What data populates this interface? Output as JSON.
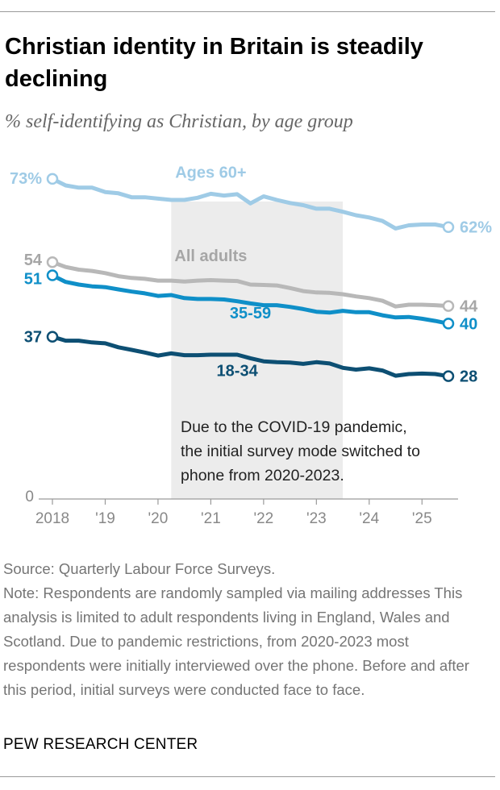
{
  "title": "Christian identity in Britain is steadily declining",
  "subtitle": "% self-identifying as Christian, by age group",
  "chart_data": {
    "type": "line",
    "x_ticks": [
      "2018",
      "'19",
      "'20",
      "'21",
      "'22",
      "'23",
      "'24",
      "'25"
    ],
    "y_zero_label": "0",
    "ylim": [
      0,
      100
    ],
    "x_range": [
      2018.0,
      2025.5
    ],
    "shaded_period": [
      2020.25,
      2023.5
    ],
    "annotation": "Due to the COVID-19 pandemic, the initial survey mode switched to phone from 2020-2023.",
    "series": [
      {
        "name": "Ages 60+",
        "color": "#9fcbe6",
        "start_label": "73%",
        "end_label": "62%",
        "x": [
          2018.0,
          2018.25,
          2018.5,
          2018.75,
          2019.0,
          2019.25,
          2019.5,
          2019.75,
          2020.0,
          2020.25,
          2020.5,
          2020.75,
          2021.0,
          2021.25,
          2021.5,
          2021.75,
          2022.0,
          2022.25,
          2022.5,
          2022.75,
          2023.0,
          2023.25,
          2023.5,
          2023.75,
          2024.0,
          2024.25,
          2024.5,
          2024.75,
          2025.0,
          2025.25,
          2025.5
        ],
        "values": [
          73,
          71.5,
          71,
          71,
          70,
          69.7,
          68.8,
          68.8,
          68.5,
          68.2,
          68.2,
          68.7,
          69.6,
          69.2,
          69.5,
          67.4,
          69,
          68.2,
          67.5,
          67,
          66.2,
          66.2,
          65.5,
          64.7,
          64.2,
          63.4,
          61.7,
          62.4,
          62.6,
          62.6,
          62
        ]
      },
      {
        "name": "All adults",
        "color": "#b8b8b8",
        "start_label": "54",
        "end_label": "44",
        "x": [
          2018.0,
          2018.25,
          2018.5,
          2018.75,
          2019.0,
          2019.25,
          2019.5,
          2019.75,
          2020.0,
          2020.25,
          2020.5,
          2020.75,
          2021.0,
          2021.25,
          2021.5,
          2021.75,
          2022.0,
          2022.25,
          2022.5,
          2022.75,
          2023.0,
          2023.25,
          2023.5,
          2023.75,
          2024.0,
          2024.25,
          2024.5,
          2024.75,
          2025.0,
          2025.25,
          2025.5
        ],
        "values": [
          54,
          52.9,
          52.3,
          52,
          51.5,
          50.8,
          50.4,
          50.2,
          49.8,
          49.8,
          49.6,
          49.8,
          49.9,
          49.8,
          49.7,
          48.9,
          48.8,
          48.7,
          48.1,
          47.4,
          47.1,
          47,
          46.7,
          46.2,
          45.8,
          45.2,
          43.9,
          44.3,
          44.3,
          44.2,
          44
        ]
      },
      {
        "name": "35-59",
        "color": "#0f8fc8",
        "start_label": "51",
        "end_label": "40",
        "x": [
          2018.0,
          2018.25,
          2018.5,
          2018.75,
          2019.0,
          2019.25,
          2019.5,
          2019.75,
          2020.0,
          2020.25,
          2020.5,
          2020.75,
          2021.0,
          2021.25,
          2021.5,
          2021.75,
          2022.0,
          2022.25,
          2022.5,
          2022.75,
          2023.0,
          2023.25,
          2023.5,
          2023.75,
          2024.0,
          2024.25,
          2024.5,
          2024.75,
          2025.0,
          2025.25,
          2025.5
        ],
        "values": [
          51,
          49.5,
          48.9,
          48.5,
          48.3,
          47.8,
          47.3,
          46.9,
          46.3,
          46.5,
          45.8,
          45.6,
          45.6,
          45.5,
          45.1,
          44.6,
          44.2,
          44.2,
          43.8,
          43.3,
          42.7,
          42.5,
          42.9,
          42.6,
          42.6,
          41.9,
          41.4,
          41.5,
          41.1,
          40.6,
          40
        ]
      },
      {
        "name": "18-34",
        "color": "#0d4f73",
        "start_label": "37",
        "end_label": "28",
        "x": [
          2018.0,
          2018.25,
          2018.5,
          2018.75,
          2019.0,
          2019.25,
          2019.5,
          2019.75,
          2020.0,
          2020.25,
          2020.5,
          2020.75,
          2021.0,
          2021.25,
          2021.5,
          2021.75,
          2022.0,
          2022.25,
          2022.5,
          2022.75,
          2023.0,
          2023.25,
          2023.5,
          2023.75,
          2024.0,
          2024.25,
          2024.5,
          2024.75,
          2025.0,
          2025.25,
          2025.5
        ],
        "values": [
          37,
          36.1,
          36.1,
          35.7,
          35.5,
          34.6,
          34,
          33.4,
          32.7,
          33.2,
          32.8,
          32.8,
          32.9,
          32.9,
          32.9,
          32.1,
          31.4,
          31.2,
          31.1,
          30.8,
          31.2,
          30.9,
          29.9,
          29.5,
          29.8,
          29.3,
          28.1,
          28.5,
          28.6,
          28.5,
          28
        ]
      }
    ]
  },
  "notes": {
    "source": "Source: Quarterly Labour Force Surveys.",
    "note": "Note: Respondents are randomly sampled via mailing addresses This analysis is limited to adult respondents living in England, Wales and Scotland. Due to pandemic restrictions, from 2020-2023 most respondents were initially interviewed over the phone. Before and after this period, initial surveys were conducted face to face."
  },
  "credit": "PEW RESEARCH CENTER"
}
